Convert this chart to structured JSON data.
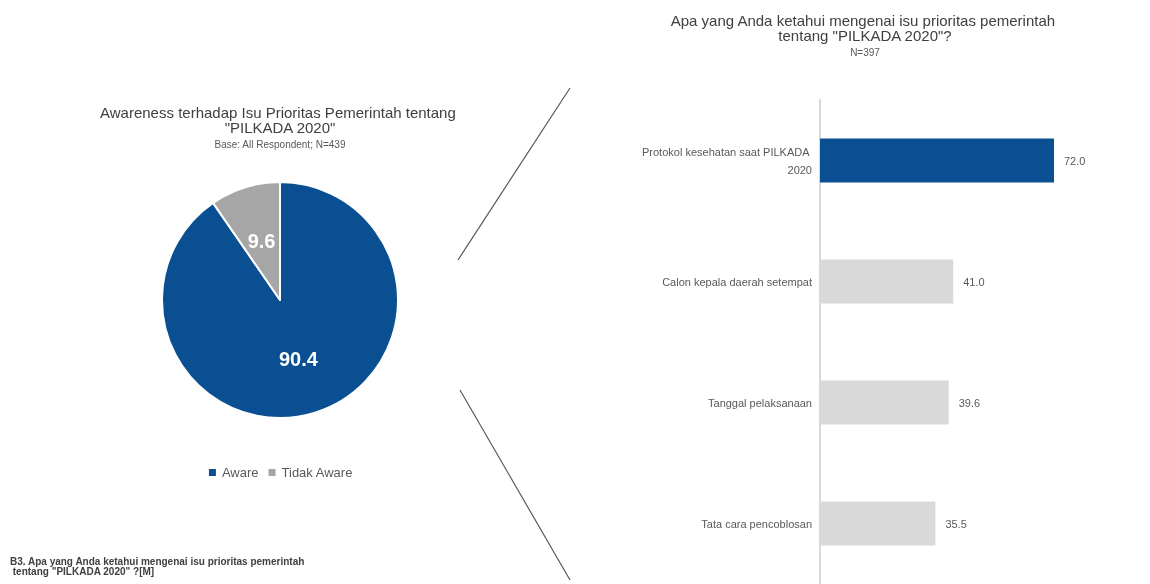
{
  "chart_data": [
    {
      "type": "pie",
      "title": "Awareness terhadap Isu Prioritas Pemerintah tentang \"PILKADA 2020\"",
      "subtitle": "Base: All Respondent; N=439",
      "categories": [
        "Aware",
        "Tidak Aware"
      ],
      "values": [
        90.4,
        9.6
      ],
      "colors": [
        "#0b4f93",
        "#a6a6a6"
      ],
      "data_labels": true,
      "legend": "bottom",
      "annotations": [
        "B3. Apa yang Anda ketahui mengenai isu prioritas pemerintah tentang \"PILKADA 2020\" ?[M]"
      ]
    },
    {
      "type": "bar",
      "orientation": "horizontal",
      "title": "Apa yang Anda ketahui mengenai isu prioritas pemerintah tentang \"PILKADA 2020\"?",
      "subtitle": "N=397",
      "categories": [
        "Protokol kesehatan saat PILKADA 2020",
        "Calon kepala daerah setempat",
        "Tanggal pelaksanaan",
        "Tata cara pencoblosan"
      ],
      "values": [
        72.0,
        41.0,
        39.6,
        35.5
      ],
      "value_labels": [
        "72.0",
        "41.0",
        "39.6",
        "35.5"
      ],
      "colors": [
        "#0b4f93",
        "#d9d9d9",
        "#d9d9d9",
        "#d9d9d9"
      ]
    }
  ]
}
